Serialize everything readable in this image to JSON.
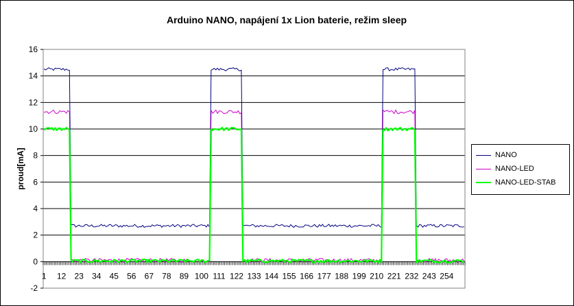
{
  "chart_data": {
    "type": "line",
    "title": "Arduino NANO, napájení 1x Lion baterie, režim sleep",
    "ylabel": "proud[mA]",
    "xlabel": "",
    "ylim": [
      -2,
      16
    ],
    "yticks": [
      -2,
      0,
      2,
      4,
      6,
      8,
      10,
      12,
      14,
      16
    ],
    "x_count": 265,
    "xtick_labels": [
      "1",
      "12",
      "23",
      "34",
      "45",
      "56",
      "67",
      "78",
      "89",
      "100",
      "111",
      "122",
      "133",
      "144",
      "155",
      "166",
      "177",
      "188",
      "199",
      "210",
      "221",
      "232",
      "243",
      "254"
    ],
    "grid": "horizontal",
    "legend_position": "right",
    "active_intervals": [
      [
        1,
        17
      ],
      [
        106,
        125
      ],
      [
        214,
        234
      ]
    ],
    "series": [
      {
        "name": "NANO",
        "color": "#000080",
        "line_width": 1,
        "active_level": 14.5,
        "sleep_level": 2.7,
        "noise": 0.12
      },
      {
        "name": "NANO-LED",
        "color": "#cc00cc",
        "line_width": 1,
        "active_level": 11.3,
        "sleep_level": 0.1,
        "noise": 0.15
      },
      {
        "name": "NANO-LED-STAB",
        "color": "#00ff00",
        "line_width": 2.2,
        "active_level": 10.0,
        "sleep_level": 0.05,
        "noise": 0.12
      }
    ]
  }
}
